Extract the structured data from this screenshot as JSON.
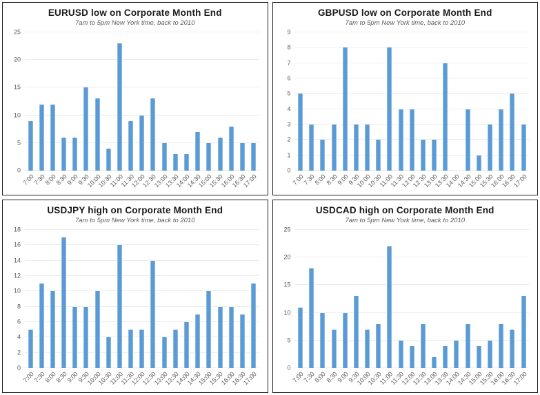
{
  "colors": {
    "bar": "#5B9BD5",
    "bar_edge": "#8AB9E2",
    "gridline": "#ECECEC",
    "title": "#1A1A1A",
    "subtitle": "#595959",
    "tick": "#595959",
    "panel_border": "#1B1B1B"
  },
  "chart_data": [
    {
      "type": "bar",
      "title": "EURUSD low on Corporate Month End",
      "subtitle": "7am to 5pm New York time, back to 2010",
      "categories": [
        "7:00",
        "7:30",
        "8:00",
        "8:30",
        "9:00",
        "9:30",
        "10:00",
        "10:30",
        "11:00",
        "11:30",
        "12:00",
        "12:30",
        "13:00",
        "13:30",
        "14:00",
        "14:30",
        "15:00",
        "15:30",
        "16:00",
        "16:30",
        "17:00"
      ],
      "values": [
        9,
        12,
        12,
        6,
        6,
        15,
        13,
        4,
        23,
        9,
        10,
        13,
        5,
        3,
        3,
        7,
        5,
        6,
        8,
        5,
        5
      ],
      "xlabel": "",
      "ylabel": "",
      "ylim": [
        0,
        25
      ],
      "ytick_step": 5,
      "grid": true,
      "legend": false
    },
    {
      "type": "bar",
      "title": "GBPUSD low on Corporate Month End",
      "subtitle": "7am to 5pm New York time, back to 2010",
      "categories": [
        "7:00",
        "7:30",
        "8:00",
        "8:30",
        "9:00",
        "9:30",
        "10:00",
        "10:30",
        "11:00",
        "11:30",
        "12:00",
        "12:30",
        "13:00",
        "13:30",
        "14:00",
        "14:30",
        "15:00",
        "15:30",
        "16:00",
        "16:30",
        "17:00"
      ],
      "values": [
        5,
        3,
        2,
        3,
        8,
        3,
        3,
        2,
        8,
        4,
        4,
        2,
        2,
        7,
        0,
        4,
        1,
        3,
        4,
        5,
        3
      ],
      "xlabel": "",
      "ylabel": "",
      "ylim": [
        0,
        9
      ],
      "ytick_step": 1,
      "grid": true,
      "legend": false
    },
    {
      "type": "bar",
      "title": "USDJPY high on Corporate Month End",
      "subtitle": "7am to 5pm New York time, back to 2010",
      "categories": [
        "7:00",
        "7:30",
        "8:00",
        "8:30",
        "9:00",
        "9:30",
        "10:00",
        "10:30",
        "11:00",
        "11:30",
        "12:00",
        "12:30",
        "13:00",
        "13:30",
        "14:00",
        "14:30",
        "15:00",
        "15:30",
        "16:00",
        "16:30",
        "17:00"
      ],
      "values": [
        5,
        11,
        10,
        17,
        8,
        8,
        10,
        4,
        16,
        5,
        5,
        14,
        4,
        5,
        6,
        7,
        10,
        8,
        8,
        7,
        11
      ],
      "xlabel": "",
      "ylabel": "",
      "ylim": [
        0,
        18
      ],
      "ytick_step": 2,
      "grid": true,
      "legend": false
    },
    {
      "type": "bar",
      "title": "USDCAD high on Corporate Month End",
      "subtitle": "7am to 5pm New York time, back to 2010",
      "categories": [
        "7:00",
        "7:30",
        "8:00",
        "8:30",
        "9:00",
        "9:30",
        "10:00",
        "10:30",
        "11:00",
        "11:30",
        "12:00",
        "12:30",
        "13:00",
        "13:30",
        "14:00",
        "14:30",
        "15:00",
        "15:30",
        "16:00",
        "16:30",
        "17:00"
      ],
      "values": [
        11,
        18,
        10,
        7,
        10,
        13,
        7,
        8,
        22,
        5,
        4,
        8,
        2,
        4,
        5,
        8,
        4,
        5,
        8,
        7,
        13
      ],
      "xlabel": "",
      "ylabel": "",
      "ylim": [
        0,
        25
      ],
      "ytick_step": 5,
      "grid": true,
      "legend": false
    }
  ]
}
